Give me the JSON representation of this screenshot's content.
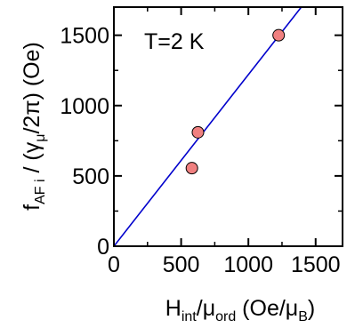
{
  "chart_data": {
    "type": "scatter",
    "annotation": "T=2 K",
    "xlabel": {
      "main": "H",
      "sub1": "int",
      "mid": "/μ",
      "sub2": "ord",
      "tail": " (Oe/μ",
      "sub3": "B",
      "end": ")"
    },
    "ylabel": {
      "main": "f",
      "sub1": "AF i",
      "mid": " / (γ",
      "sub2": "μ",
      "tail": "/2π) (Oe)"
    },
    "xlim": [
      0,
      1700
    ],
    "ylim": [
      0,
      1700
    ],
    "x_ticks": [
      0,
      500,
      1000,
      1500
    ],
    "y_ticks": [
      0,
      500,
      1000,
      1500
    ],
    "x_tick_labels": [
      "0",
      "500",
      "1000",
      "1500"
    ],
    "y_tick_labels": [
      "0",
      "500",
      "1000",
      "1500"
    ],
    "points": [
      {
        "x": 580,
        "y": 555
      },
      {
        "x": 625,
        "y": 810
      },
      {
        "x": 1225,
        "y": 1500
      }
    ],
    "fit_line": {
      "slope": 1.22,
      "intercept": 0
    },
    "colors": {
      "point_fill": "#f08080",
      "point_stroke": "#000000",
      "line": "#0000cc",
      "axes": "#000000"
    }
  }
}
